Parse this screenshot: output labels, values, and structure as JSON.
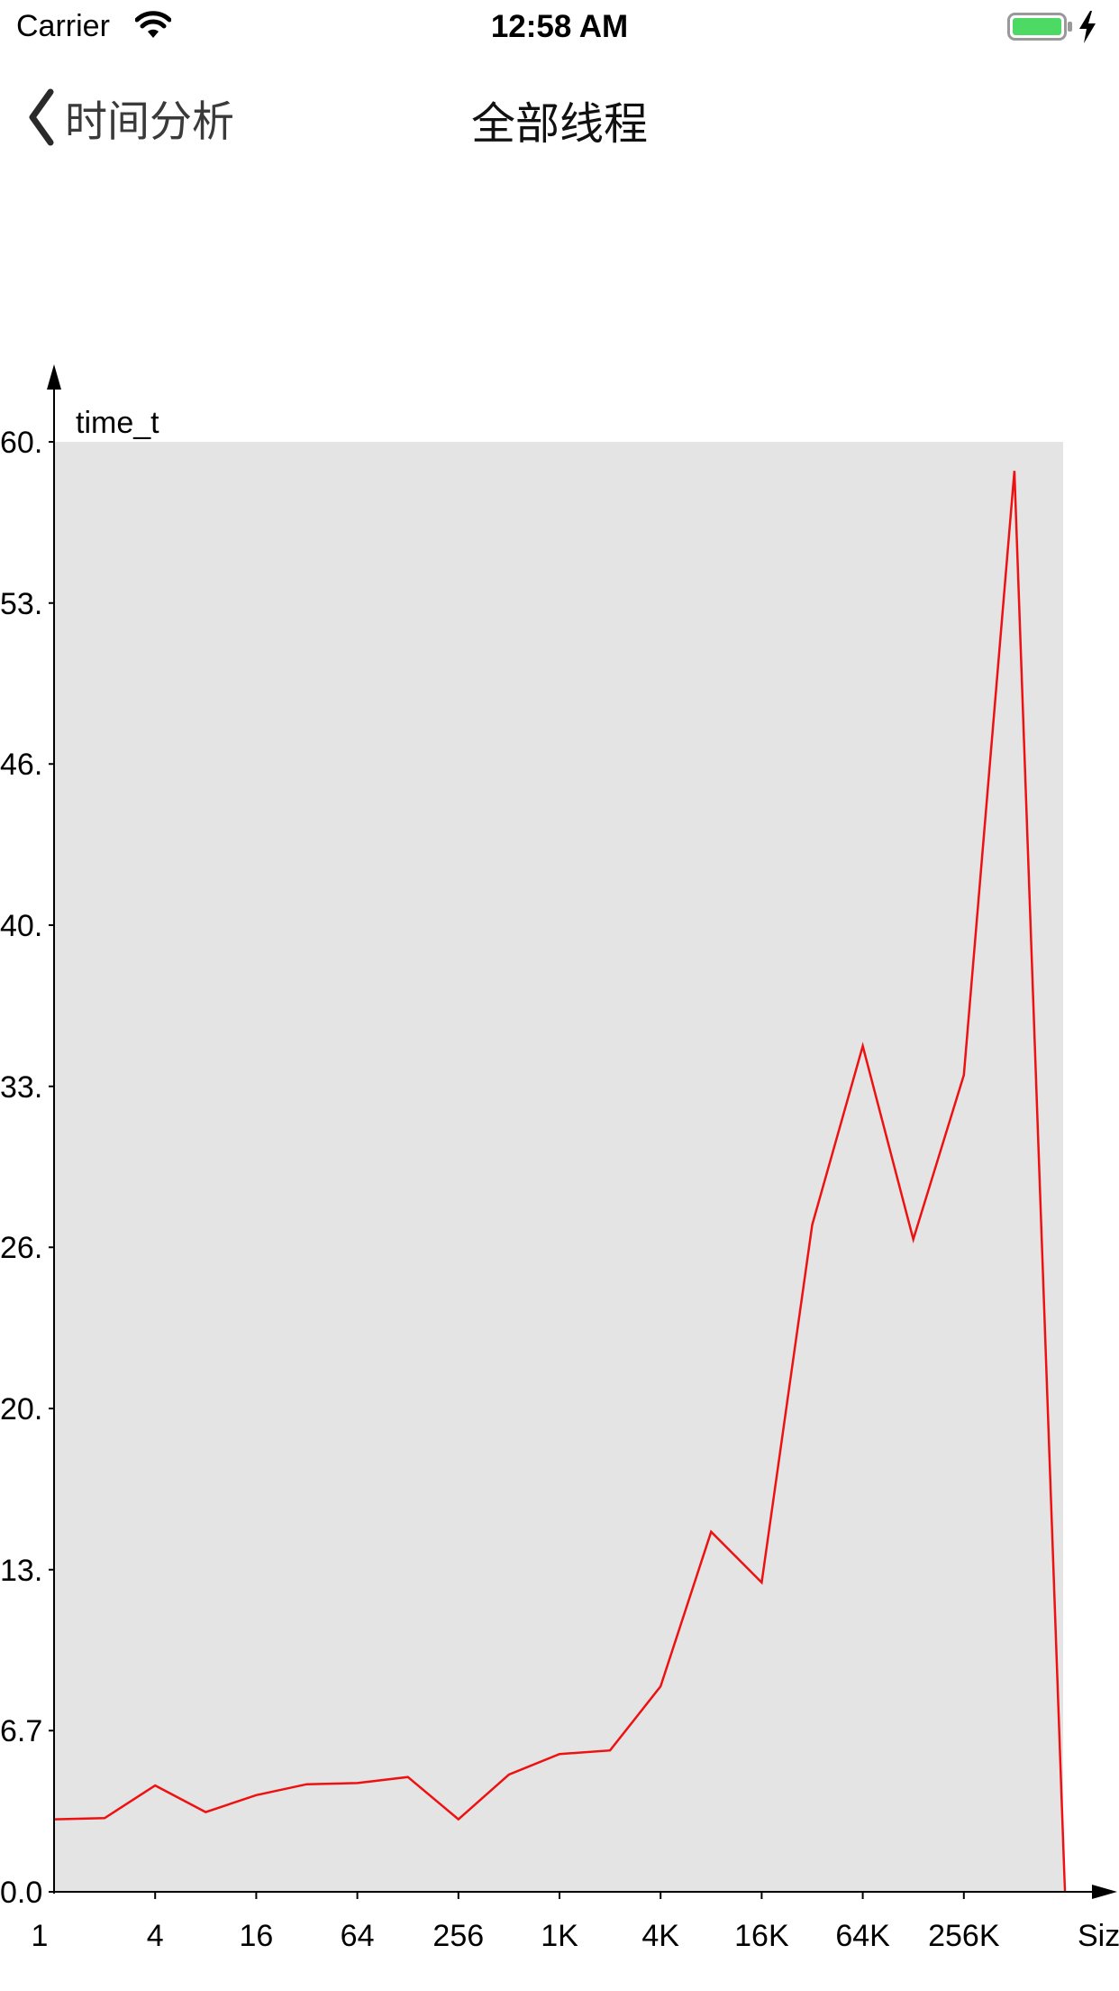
{
  "status_bar": {
    "carrier": "Carrier",
    "time": "12:58 AM"
  },
  "nav": {
    "back_label": "时间分析",
    "title": "全部线程"
  },
  "colors": {
    "line": "#ee1111",
    "plot_bg": "#e5e4e5",
    "battery": "#4cd964"
  },
  "chart_data": {
    "type": "line",
    "title": "",
    "ylabel": "time_t",
    "xlabel": "Siz",
    "ylim": [
      0,
      60
    ],
    "y_ticks": [
      {
        "value": 0,
        "label": "0.0"
      },
      {
        "value": 6.67,
        "label": "6.7"
      },
      {
        "value": 13.33,
        "label": "13."
      },
      {
        "value": 20,
        "label": "20."
      },
      {
        "value": 26.67,
        "label": "26."
      },
      {
        "value": 33.33,
        "label": "33."
      },
      {
        "value": 40,
        "label": "40."
      },
      {
        "value": 46.67,
        "label": "46."
      },
      {
        "value": 53.33,
        "label": "53."
      },
      {
        "value": 60,
        "label": "60."
      }
    ],
    "x_tick_labels": [
      {
        "index": 0,
        "label": "1"
      },
      {
        "index": 2,
        "label": "4"
      },
      {
        "index": 4,
        "label": "16"
      },
      {
        "index": 6,
        "label": "64"
      },
      {
        "index": 8,
        "label": "256"
      },
      {
        "index": 10,
        "label": "1K"
      },
      {
        "index": 12,
        "label": "4K"
      },
      {
        "index": 14,
        "label": "16K"
      },
      {
        "index": 16,
        "label": "64K"
      },
      {
        "index": 18,
        "label": "256K"
      }
    ],
    "series": [
      {
        "name": "time_t",
        "values": [
          3.0,
          3.05,
          4.4,
          3.3,
          4.0,
          4.45,
          4.5,
          4.75,
          3.0,
          4.85,
          5.7,
          5.85,
          8.5,
          14.9,
          12.8,
          27.6,
          35.0,
          27.0,
          33.8,
          58.8,
          0.0
        ]
      }
    ]
  }
}
